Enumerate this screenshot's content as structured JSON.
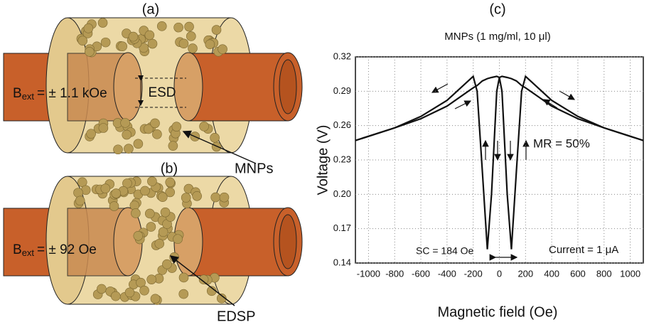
{
  "panel_a": {
    "label": "(a)",
    "field_main": "B",
    "field_sub": "ext",
    "field_rest": "= ± 1.1 kOe",
    "gap_label": "ESD",
    "particles_label": "MNPs"
  },
  "panel_b": {
    "label": "(b)",
    "field_main": "B",
    "field_sub": "ext",
    "field_rest": "= ± 92 Oe",
    "cluster_label": "EDSP"
  },
  "chart_data": {
    "type": "line",
    "panel_label": "(c)",
    "title": "MNPs (1 mg/ml, 10 μl)",
    "x_label": "Magnetic field (Oe)",
    "y_label": "Voltage (V)",
    "x": [
      -1100,
      -800,
      -600,
      -400,
      -200,
      -170,
      -130,
      -92,
      -60,
      -20,
      0,
      20,
      60,
      92,
      130,
      170,
      200,
      400,
      600,
      800,
      1100
    ],
    "series": [
      {
        "color": "#111111",
        "values": [
          0.247,
          0.258,
          0.268,
          0.282,
          0.303,
          0.29,
          0.22,
          0.152,
          0.2,
          0.29,
          0.302,
          0.303,
          0.302,
          0.301,
          0.299,
          0.295,
          0.293,
          0.277,
          0.266,
          0.258,
          0.247
        ]
      },
      {
        "color": "#111111",
        "values": [
          0.247,
          0.258,
          0.266,
          0.277,
          0.293,
          0.295,
          0.299,
          0.301,
          0.302,
          0.303,
          0.302,
          0.29,
          0.2,
          0.152,
          0.22,
          0.29,
          0.303,
          0.282,
          0.268,
          0.258,
          0.247
        ]
      }
    ],
    "xlim": [
      -1100,
      1100
    ],
    "xticks": [
      -1000,
      -800,
      -600,
      -400,
      -200,
      0,
      200,
      400,
      600,
      800,
      1000
    ],
    "ylim": [
      0.14,
      0.32
    ],
    "yticks": [
      0.14,
      0.17,
      {
        "value": 0.2,
        "label": "0.20"
      },
      0.23,
      0.26,
      0.29,
      0.32
    ],
    "grid": true,
    "annotations": [
      "MR = 50%",
      "SC = 184 Oe",
      "Current  = 1 μA"
    ]
  }
}
